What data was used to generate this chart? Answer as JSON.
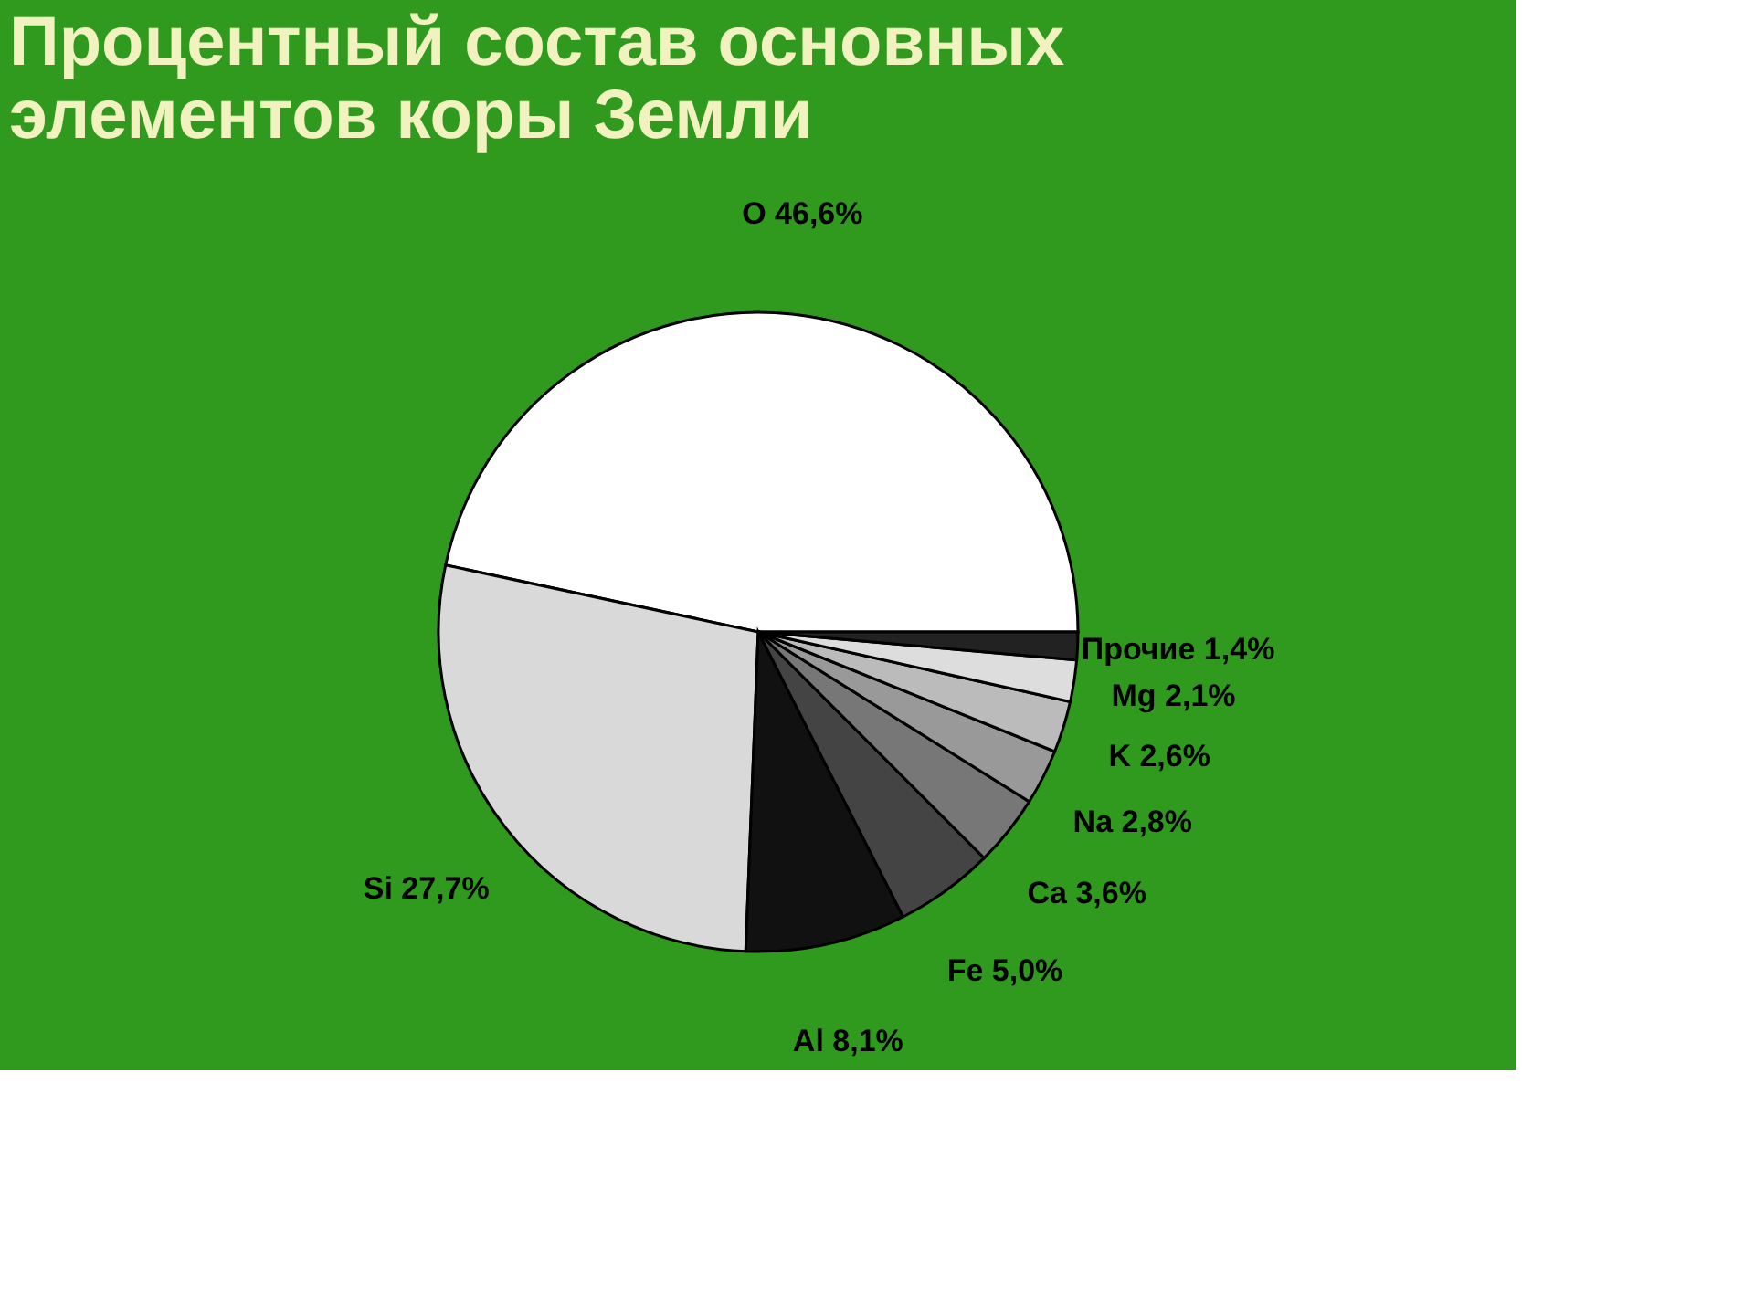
{
  "chart_data": {
    "type": "pie",
    "title": "Процентный состав основных элементов коры Земли",
    "categories": [
      "O",
      "Si",
      "Al",
      "Fe",
      "Ca",
      "Na",
      "K",
      "Mg",
      "Прочие"
    ],
    "values": [
      46.6,
      27.7,
      8.1,
      5.0,
      3.6,
      2.8,
      2.6,
      2.1,
      1.4
    ],
    "value_labels": [
      "46,6%",
      "27,7%",
      "8,1%",
      "5,0%",
      "3,6%",
      "2,8%",
      "2,6%",
      "2,1%",
      "1,4%"
    ],
    "colors": [
      "#ffffff",
      "#d9d9d9",
      "#111111",
      "#444444",
      "#777777",
      "#999999",
      "#bbbbbb",
      "#dddddd",
      "#222222"
    ]
  }
}
